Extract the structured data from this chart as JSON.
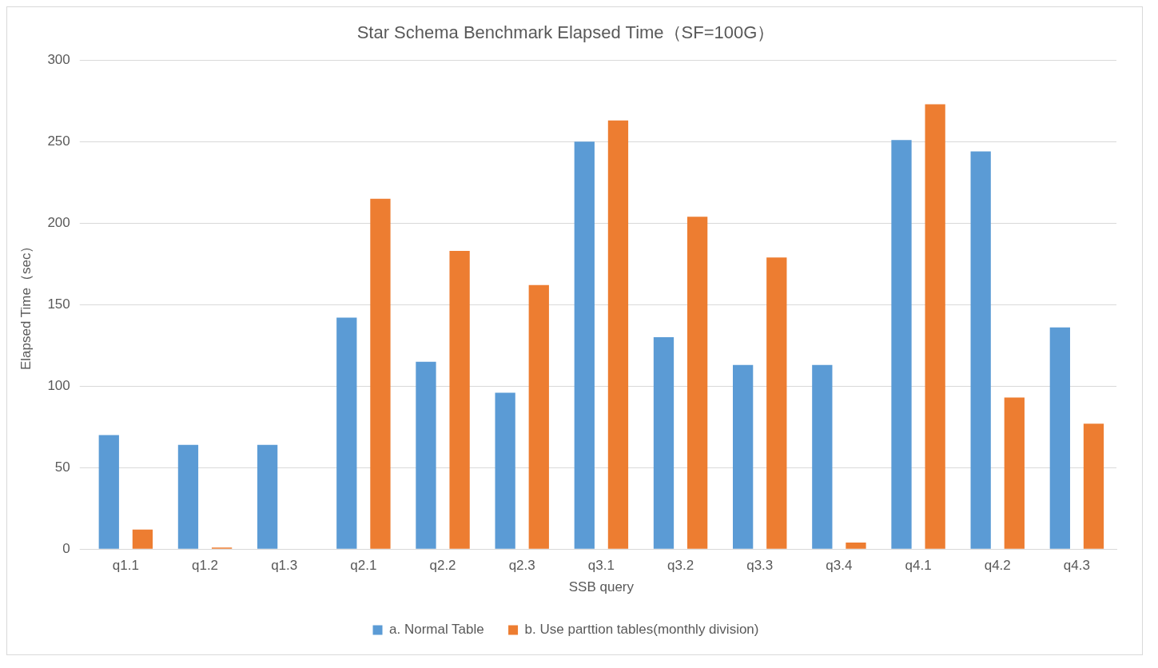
{
  "chart_data": {
    "type": "bar",
    "title": "Star Schema Benchmark Elapsed Time（SF=100G）",
    "xlabel": "SSB query",
    "ylabel": "Elapsed Time（sec）",
    "categories": [
      "q1.1",
      "q1.2",
      "q1.3",
      "q2.1",
      "q2.2",
      "q2.3",
      "q3.1",
      "q3.2",
      "q3.3",
      "q3.4",
      "q4.1",
      "q4.2",
      "q4.3"
    ],
    "series": [
      {
        "name": "a. Normal Table",
        "color": "#5b9bd5",
        "values": [
          70,
          64,
          64,
          142,
          115,
          96,
          250,
          130,
          113,
          113,
          251,
          244,
          136
        ]
      },
      {
        "name": "b. Use parttion tables(monthly division)",
        "color": "#ed7d31",
        "values": [
          12,
          1,
          0,
          215,
          183,
          162,
          263,
          204,
          179,
          4,
          273,
          93,
          77
        ]
      }
    ],
    "ylim": [
      0,
      300
    ],
    "yticks": [
      0,
      50,
      100,
      150,
      200,
      250,
      300
    ],
    "grid": "y",
    "legend": "bottom"
  }
}
